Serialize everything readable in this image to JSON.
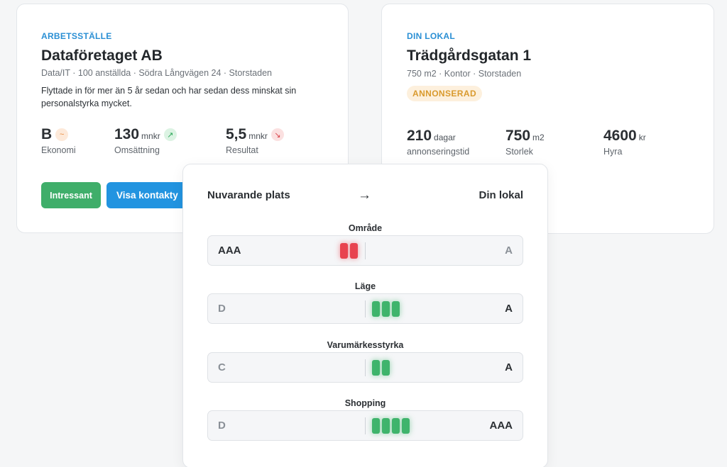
{
  "workplace": {
    "eyebrow": "ARBETSSTÄLLE",
    "name": "Dataföretaget AB",
    "meta": "Data/IT · 100 anställda · Södra Långvägen 24 · Storstaden",
    "description": "Flyttade in för mer än 5 år sedan och har sedan dess minskat sin personalstyrka mycket.",
    "stats": [
      {
        "value": "B",
        "unit": "",
        "label": "Ekonomi",
        "trend": "flat",
        "trend_icon": "~"
      },
      {
        "value": "130",
        "unit": "mnkr",
        "label": "Omsättning",
        "trend": "up",
        "trend_icon": "↗"
      },
      {
        "value": "5,5",
        "unit": "mnkr",
        "label": "Resultat",
        "trend": "down",
        "trend_icon": "↘"
      }
    ],
    "buttons": {
      "interested": "Intressant",
      "contact": "Visa kontakty"
    }
  },
  "premises": {
    "eyebrow": "DIN LOKAL",
    "name": "Trädgårdsgatan 1",
    "meta": "750 m2 · Kontor · Storstaden",
    "status": "ANNONSERAD",
    "stats": [
      {
        "value": "210",
        "unit": "dagar",
        "label": "annonseringstid"
      },
      {
        "value": "750",
        "unit": "m2",
        "label": "Storlek"
      },
      {
        "value": "4600",
        "unit": "kr",
        "label": "Hyra"
      }
    ]
  },
  "comparison": {
    "from_label": "Nuvarande plats",
    "arrow": "→",
    "to_label": "Din lokal",
    "rows": [
      {
        "category": "Område",
        "from": "AAA",
        "to": "A",
        "direction": "down",
        "steps": 2
      },
      {
        "category": "Läge",
        "from": "D",
        "to": "A",
        "direction": "up",
        "steps": 3
      },
      {
        "category": "Varumärkesstyrka",
        "from": "C",
        "to": "A",
        "direction": "up",
        "steps": 2
      },
      {
        "category": "Shopping",
        "from": "D",
        "to": "AAA",
        "direction": "up",
        "steps": 4
      }
    ]
  },
  "colors": {
    "accent_blue": "#2294e0",
    "interested_green": "#3fae6a",
    "positive": "#3fb46c",
    "negative": "#e8434f",
    "status_amber": "#d99a2e"
  }
}
